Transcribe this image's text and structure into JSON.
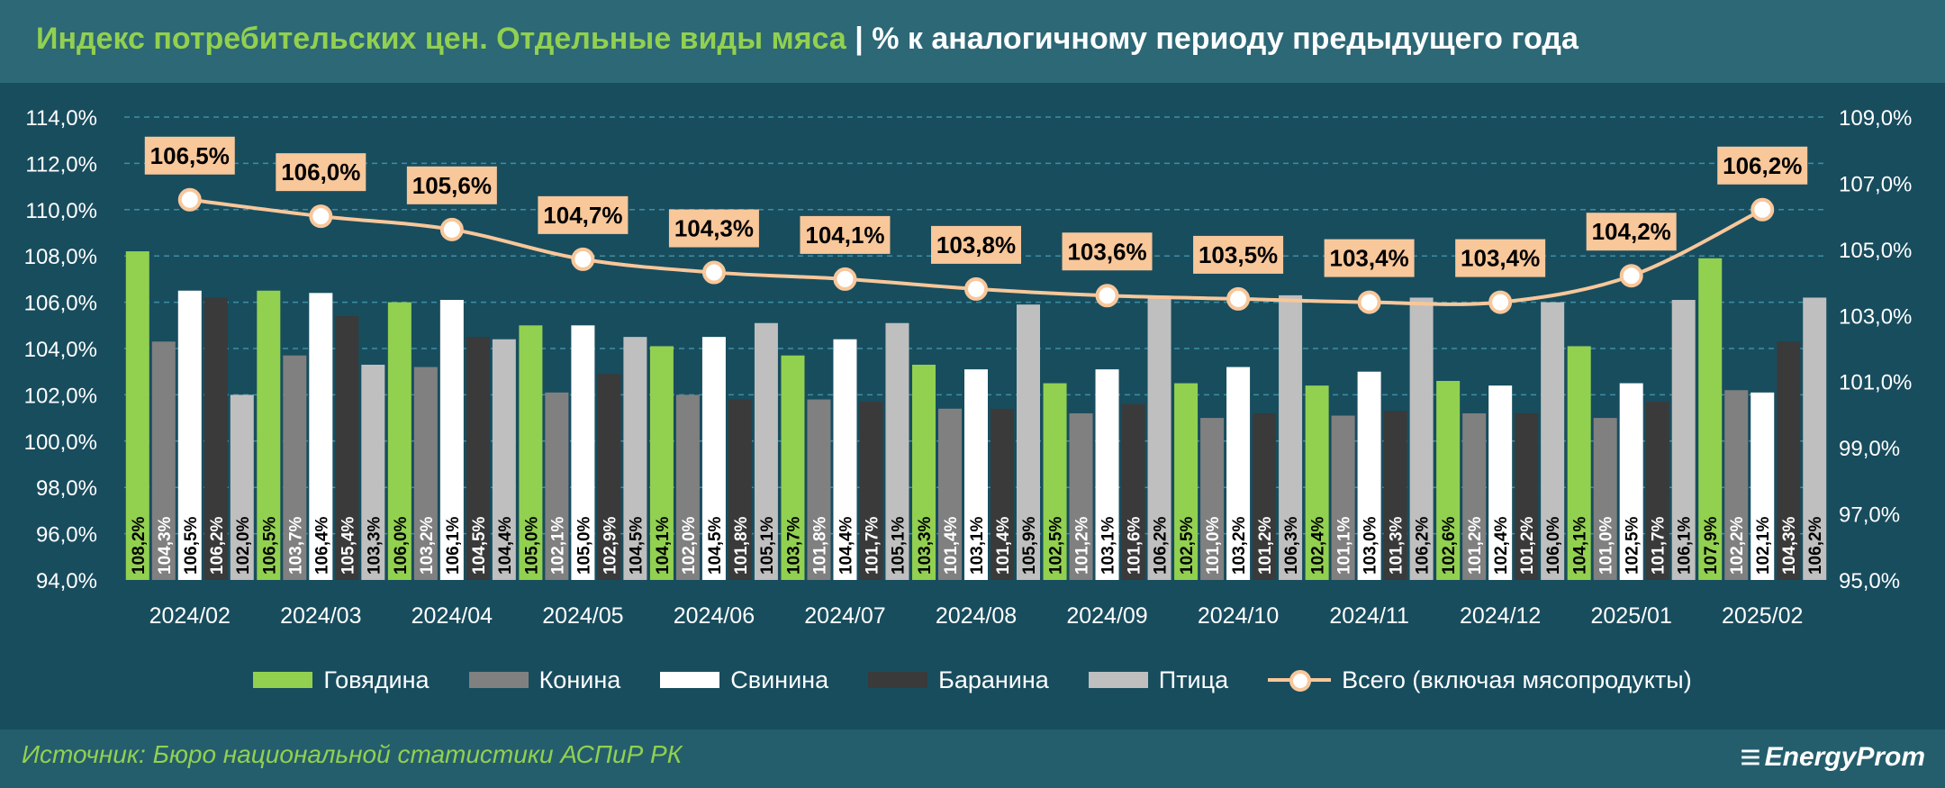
{
  "header": {
    "title_main": "Индекс потребительских цен. Отдельные виды мяса",
    "title_sep": " | ",
    "title_sub": "% к аналогичному периоду предыдущего года"
  },
  "footer": {
    "source": "Источник: Бюро национальной статистики АСПиР РК",
    "brand": "EnergyProm",
    "brand_icon": "energyprom-logo-icon"
  },
  "colors": {
    "background": "#184d5e",
    "beef": "#92d050",
    "horse": "#808080",
    "pork": "#ffffff",
    "mutton": "#3a3a3a",
    "poultry": "#bfbfbf",
    "total_line": "#f8c79a",
    "label_box": "#f8c79a"
  },
  "chart_data": {
    "type": "bar",
    "categories": [
      "2024/02",
      "2024/03",
      "2024/04",
      "2024/05",
      "2024/06",
      "2024/07",
      "2024/08",
      "2024/09",
      "2024/10",
      "2024/11",
      "2024/12",
      "2025/01",
      "2025/02"
    ],
    "left_axis": {
      "ylim": [
        94.0,
        114.0
      ],
      "step": 2.0,
      "ticks": [
        "94,0%",
        "96,0%",
        "98,0%",
        "100,0%",
        "102,0%",
        "104,0%",
        "106,0%",
        "108,0%",
        "110,0%",
        "112,0%",
        "114,0%"
      ]
    },
    "right_axis": {
      "ylim": [
        95.0,
        109.0
      ],
      "step": 2.0,
      "ticks": [
        "95,0%",
        "97,0%",
        "99,0%",
        "101,0%",
        "103,0%",
        "105,0%",
        "107,0%",
        "109,0%"
      ]
    },
    "grid": true,
    "legend_position": "bottom",
    "series": [
      {
        "name": "Говядина",
        "color": "#92d050",
        "label_color": "#000000",
        "values": [
          108.2,
          106.5,
          106.0,
          105.0,
          104.1,
          103.7,
          103.3,
          102.5,
          102.5,
          102.4,
          102.6,
          104.1,
          107.9
        ]
      },
      {
        "name": "Конина",
        "color": "#808080",
        "label_color": "#ffffff",
        "values": [
          104.3,
          103.7,
          103.2,
          102.1,
          102.0,
          101.8,
          101.4,
          101.2,
          101.0,
          101.1,
          101.2,
          101.0,
          102.2
        ]
      },
      {
        "name": "Свинина",
        "color": "#ffffff",
        "label_color": "#000000",
        "values": [
          106.5,
          106.4,
          106.1,
          105.0,
          104.5,
          104.4,
          103.1,
          103.1,
          103.2,
          103.0,
          102.4,
          102.5,
          102.1
        ]
      },
      {
        "name": "Баранина",
        "color": "#3a3a3a",
        "label_color": "#ffffff",
        "values": [
          106.2,
          105.4,
          104.5,
          102.9,
          101.8,
          101.7,
          101.4,
          101.6,
          101.2,
          101.3,
          101.2,
          101.7,
          104.3
        ]
      },
      {
        "name": "Птица",
        "color": "#bfbfbf",
        "label_color": "#000000",
        "values": [
          102.0,
          103.3,
          104.4,
          104.5,
          105.1,
          105.1,
          105.9,
          106.2,
          106.3,
          106.2,
          106.0,
          106.1,
          106.2
        ]
      }
    ],
    "line_series": {
      "name": "Всего (включая мясопродукты)",
      "axis": "right",
      "color": "#f8c79a",
      "values": [
        106.5,
        106.0,
        105.6,
        104.7,
        104.3,
        104.1,
        103.8,
        103.6,
        103.5,
        103.4,
        103.4,
        104.2,
        106.2
      ]
    }
  }
}
